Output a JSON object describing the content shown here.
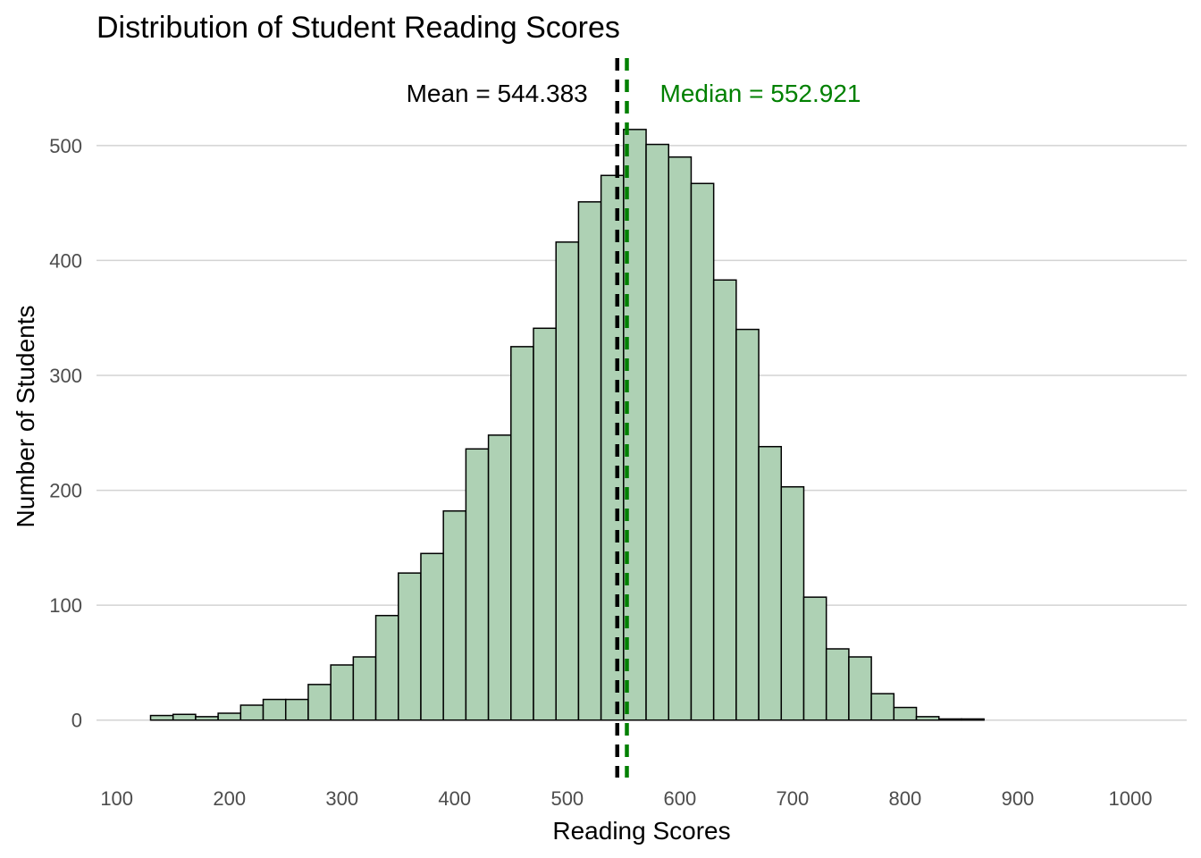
{
  "chart_data": {
    "type": "bar",
    "title": "Distribution of Student Reading Scores",
    "xlabel": "Reading Scores",
    "ylabel": "Number of Students",
    "xlim": [
      82,
      1050
    ],
    "ylim": [
      -50,
      580
    ],
    "x_ticks": [
      "100",
      "200",
      "300",
      "400",
      "500",
      "600",
      "700",
      "800",
      "900",
      "1000"
    ],
    "x_tick_values": [
      100,
      200,
      300,
      400,
      500,
      600,
      700,
      800,
      900,
      1000
    ],
    "y_ticks": [
      "0",
      "100",
      "200",
      "300",
      "400",
      "500"
    ],
    "y_tick_values": [
      0,
      100,
      200,
      300,
      400,
      500
    ],
    "grid": "horizontal",
    "bin_width": 20,
    "bins": [
      {
        "x0": 130,
        "x1": 150,
        "count": 4
      },
      {
        "x0": 150,
        "x1": 170,
        "count": 5
      },
      {
        "x0": 170,
        "x1": 190,
        "count": 3
      },
      {
        "x0": 190,
        "x1": 210,
        "count": 6
      },
      {
        "x0": 210,
        "x1": 230,
        "count": 13
      },
      {
        "x0": 230,
        "x1": 250,
        "count": 18
      },
      {
        "x0": 250,
        "x1": 270,
        "count": 18
      },
      {
        "x0": 270,
        "x1": 290,
        "count": 31
      },
      {
        "x0": 290,
        "x1": 310,
        "count": 48
      },
      {
        "x0": 310,
        "x1": 330,
        "count": 55
      },
      {
        "x0": 330,
        "x1": 350,
        "count": 91
      },
      {
        "x0": 350,
        "x1": 370,
        "count": 128
      },
      {
        "x0": 370,
        "x1": 390,
        "count": 145
      },
      {
        "x0": 390,
        "x1": 410,
        "count": 182
      },
      {
        "x0": 410,
        "x1": 430,
        "count": 236
      },
      {
        "x0": 430,
        "x1": 450,
        "count": 248
      },
      {
        "x0": 450,
        "x1": 470,
        "count": 325
      },
      {
        "x0": 470,
        "x1": 490,
        "count": 341
      },
      {
        "x0": 490,
        "x1": 510,
        "count": 416
      },
      {
        "x0": 510,
        "x1": 530,
        "count": 451
      },
      {
        "x0": 530,
        "x1": 550,
        "count": 474
      },
      {
        "x0": 550,
        "x1": 570,
        "count": 514
      },
      {
        "x0": 570,
        "x1": 590,
        "count": 501
      },
      {
        "x0": 590,
        "x1": 610,
        "count": 490
      },
      {
        "x0": 610,
        "x1": 630,
        "count": 467
      },
      {
        "x0": 630,
        "x1": 650,
        "count": 383
      },
      {
        "x0": 650,
        "x1": 670,
        "count": 340
      },
      {
        "x0": 670,
        "x1": 690,
        "count": 238
      },
      {
        "x0": 690,
        "x1": 710,
        "count": 203
      },
      {
        "x0": 710,
        "x1": 730,
        "count": 107
      },
      {
        "x0": 730,
        "x1": 750,
        "count": 62
      },
      {
        "x0": 750,
        "x1": 770,
        "count": 55
      },
      {
        "x0": 770,
        "x1": 790,
        "count": 23
      },
      {
        "x0": 790,
        "x1": 810,
        "count": 11
      },
      {
        "x0": 810,
        "x1": 830,
        "count": 3
      },
      {
        "x0": 830,
        "x1": 850,
        "count": 1
      },
      {
        "x0": 850,
        "x1": 870,
        "count": 1
      }
    ],
    "reference_lines": [
      {
        "value": 544.383,
        "label": "Mean = 544.383",
        "color": "#000000",
        "label_anchor": "end"
      },
      {
        "value": 552.921,
        "label": "Median = 552.921",
        "color": "#008000",
        "label_anchor": "start"
      }
    ],
    "bar_fill": "#aed1b4",
    "bar_stroke": "#000000"
  }
}
